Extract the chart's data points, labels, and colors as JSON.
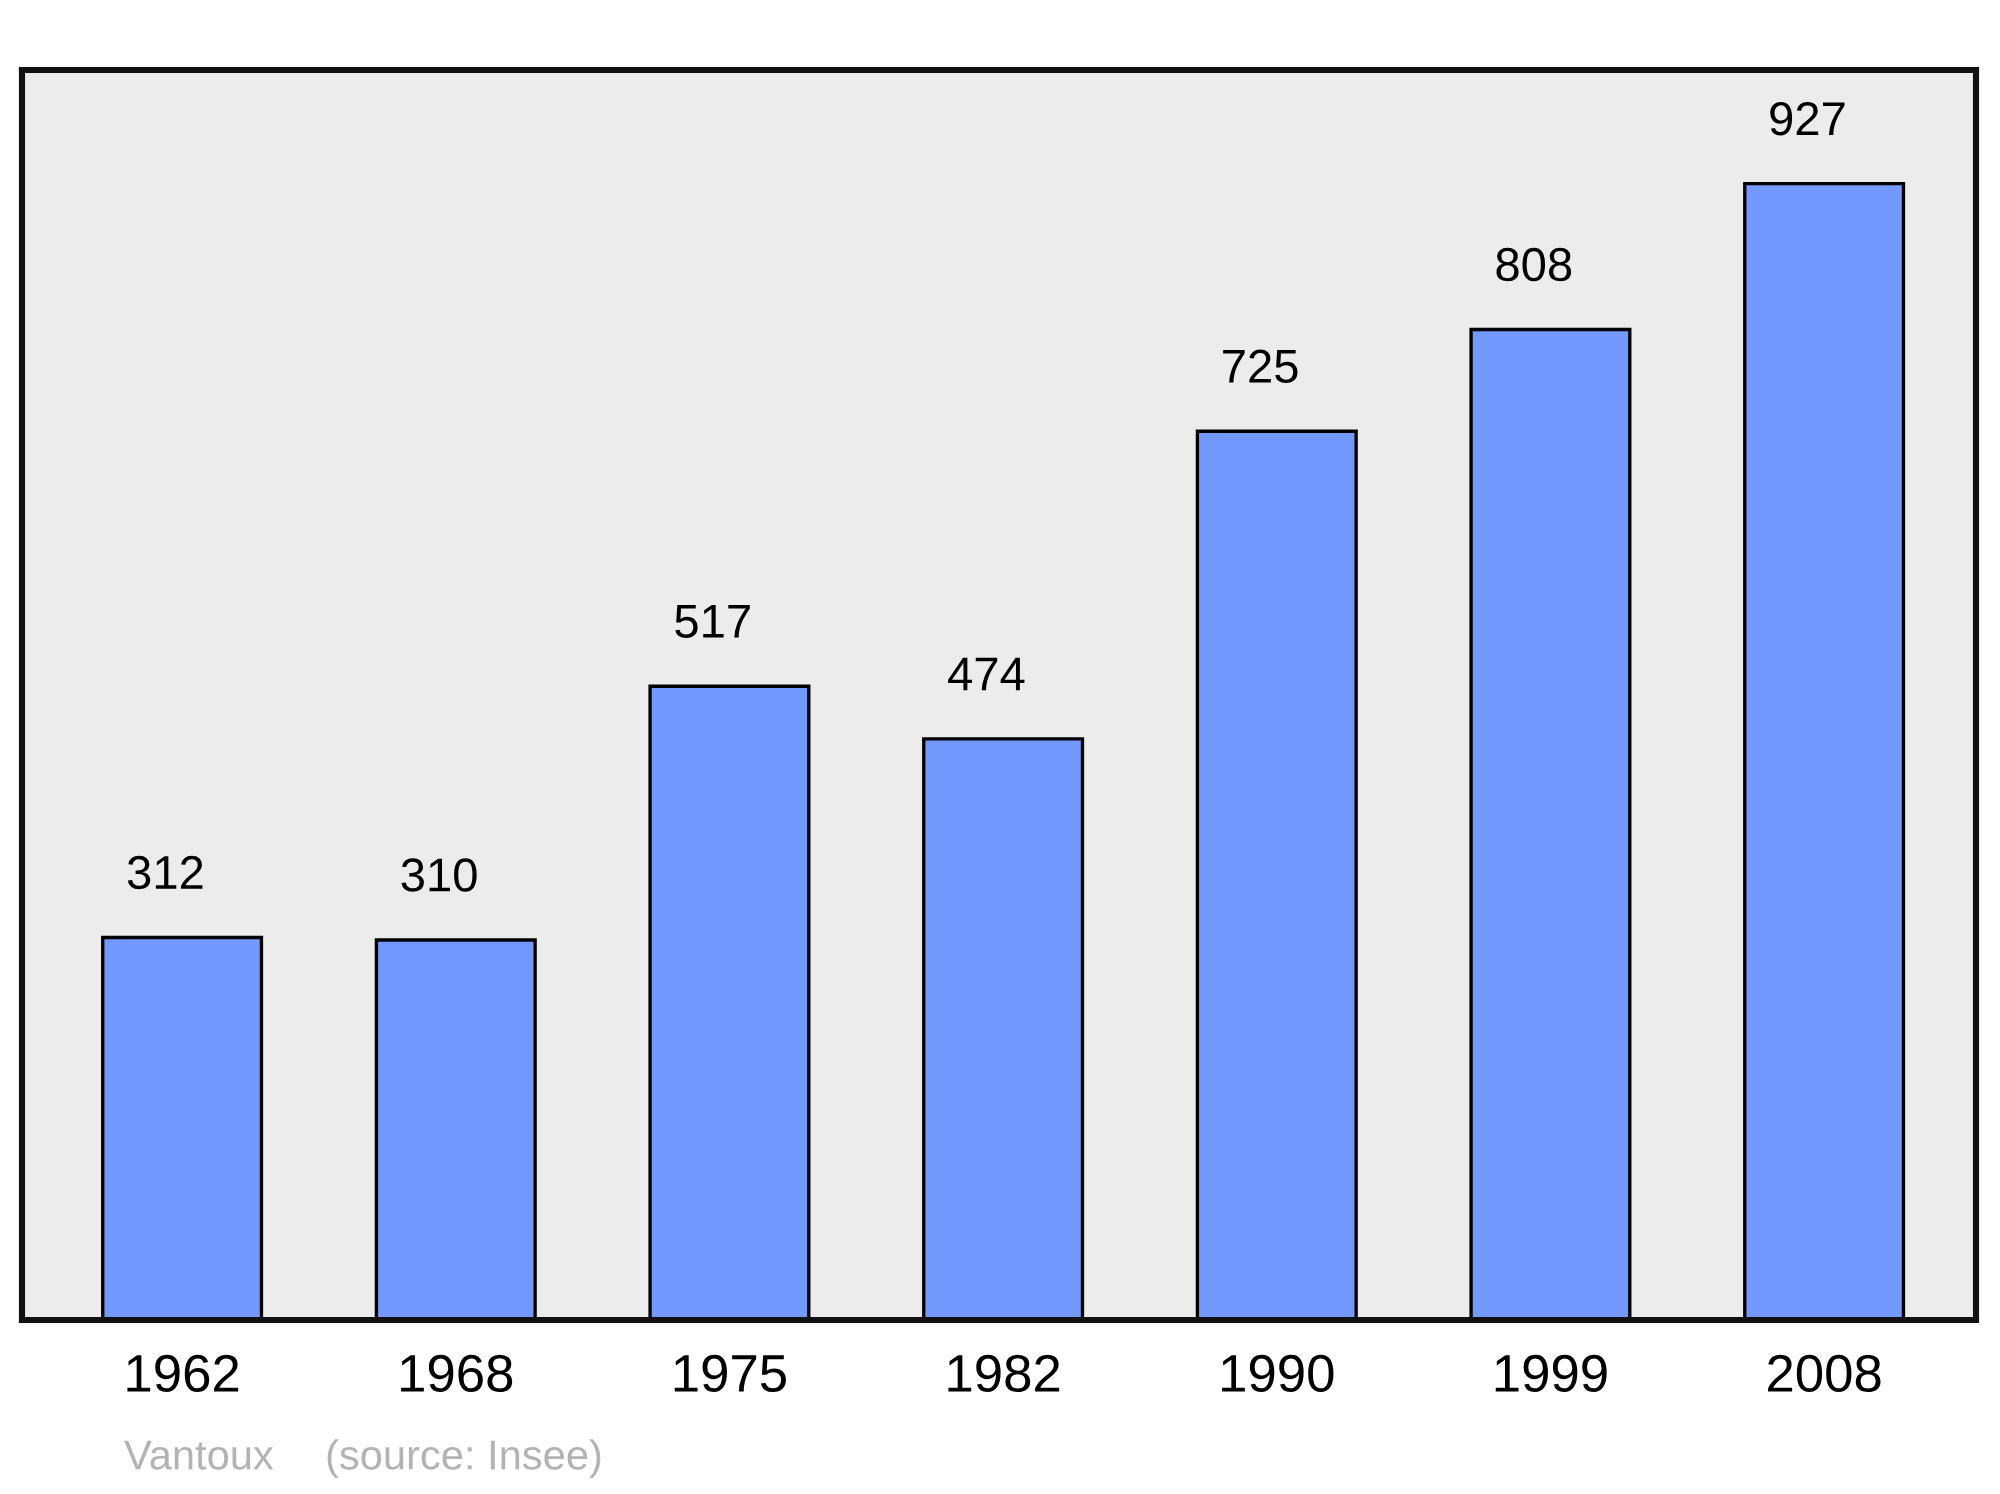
{
  "chart_data": {
    "type": "bar",
    "categories": [
      "1962",
      "1968",
      "1975",
      "1982",
      "1990",
      "1999",
      "2008"
    ],
    "values": [
      312,
      310,
      517,
      474,
      725,
      808,
      927
    ],
    "color": "#7399ff",
    "data_labels": true,
    "grid": false,
    "legend": false,
    "annotations": [
      "Vantoux",
      "(source: Insee)"
    ]
  }
}
